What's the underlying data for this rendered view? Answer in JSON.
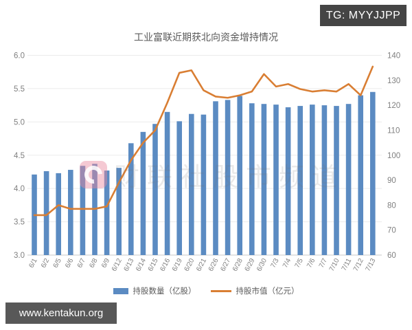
{
  "badge": {
    "text": "TG: MYYJJPP",
    "bg": "#454545"
  },
  "footer": {
    "text": "www.kentakun.org",
    "bg": "#585858"
  },
  "watermark": {
    "text": "财联社股市频道"
  },
  "chart_data": {
    "type": "bar",
    "subtype": "bar+line dual axis",
    "title": "工业富联近期获北向资金增持情况",
    "categories": [
      "6/1",
      "6/2",
      "6/5",
      "6/6",
      "6/7",
      "6/8",
      "6/9",
      "6/12",
      "6/13",
      "6/14",
      "6/15",
      "6/16",
      "6/19",
      "6/20",
      "6/21",
      "6/26",
      "6/27",
      "6/28",
      "6/29",
      "6/30",
      "7/3",
      "7/4",
      "7/5",
      "7/6",
      "7/7",
      "7/10",
      "7/11",
      "7/12",
      "7/13"
    ],
    "series": [
      {
        "name": "持股数量（亿股）",
        "type": "bar",
        "axis": "left",
        "color": "#5b8bc2",
        "values": [
          4.21,
          4.26,
          4.23,
          4.28,
          4.34,
          4.37,
          4.27,
          4.31,
          4.68,
          4.85,
          4.97,
          5.15,
          5.01,
          5.12,
          5.11,
          5.31,
          5.33,
          5.39,
          5.28,
          5.27,
          5.26,
          5.22,
          5.24,
          5.26,
          5.25,
          5.24,
          5.27,
          5.4,
          5.45
        ]
      },
      {
        "name": "持股市值（亿元）",
        "type": "line",
        "axis": "right",
        "color": "#d97e33",
        "values": [
          76,
          76,
          80,
          78.5,
          78.5,
          78.5,
          79.5,
          89,
          98,
          105,
          110,
          121,
          133,
          134,
          126,
          123.5,
          123,
          124,
          125.5,
          132.5,
          127.5,
          128.5,
          126.5,
          125.5,
          126,
          125.5,
          128.5,
          124,
          135.5
        ]
      }
    ],
    "left_axis": {
      "min": 3.0,
      "max": 6.0,
      "ticks": [
        "3.0",
        "3.5",
        "4.0",
        "4.5",
        "5.0",
        "5.5",
        "6.0"
      ]
    },
    "right_axis": {
      "min": 60,
      "max": 140,
      "ticks": [
        "60",
        "70",
        "80",
        "90",
        "100",
        "110",
        "120",
        "130",
        "140"
      ]
    },
    "grid": true,
    "legend_position": "bottom",
    "xlabel": "",
    "ylabel": ""
  }
}
